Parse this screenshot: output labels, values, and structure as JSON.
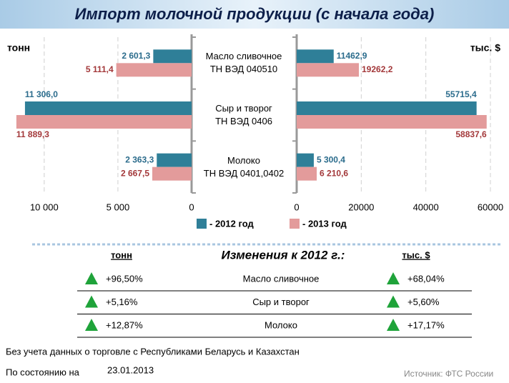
{
  "title": "Импорт молочной продукции (с начала года)",
  "chart_data": [
    {
      "type": "hbar",
      "unit_label": "тонн",
      "reversed": true,
      "categories": [
        "Масло сливочное\nТН ВЭД 040510",
        "Сыр и творог\nТН ВЭД 0406",
        "Молоко\nТН ВЭД 0401,0402"
      ],
      "series": [
        {
          "name": "- 2012 год",
          "color": "#2f7f98",
          "values": [
            2601.3,
            11306.0,
            2363.3
          ],
          "value_labels": [
            "2 601,3",
            "11 306,0",
            "2 363,3"
          ]
        },
        {
          "name": "- 2013 год",
          "color": "#e39b9b",
          "values": [
            5111.4,
            11889.3,
            2667.5
          ],
          "value_labels": [
            "5 111,4",
            "11 889,3",
            "2 667,5"
          ]
        }
      ],
      "xlim": [
        0,
        13000
      ],
      "xticks": [
        {
          "value": 10000,
          "label": "10 000"
        },
        {
          "value": 5000,
          "label": "5 000"
        },
        0
      ],
      "grid": true
    },
    {
      "type": "hbar",
      "unit_label": "тыс. $",
      "reversed": false,
      "series": [
        {
          "color": "#2f7f98",
          "values": [
            11462.9,
            55715.4,
            5300.4
          ],
          "value_labels": [
            "11462,9",
            "55715,4",
            "5 300,4"
          ]
        },
        {
          "color": "#e39b9b",
          "values": [
            19262.2,
            58837.6,
            6210.6
          ],
          "value_labels": [
            "19262,2",
            "58837,6",
            "6 210,6"
          ]
        }
      ],
      "xlim": [
        0,
        60000
      ],
      "xticks": [
        0,
        20000,
        40000,
        60000
      ],
      "grid": true
    }
  ],
  "changes": {
    "title": "Изменения к 2012 г.:",
    "left_header": "тонн",
    "right_header": "тыс. $",
    "rows": [
      [
        "+96,50%",
        "Масло сливочное",
        "+68,04%"
      ],
      [
        "+5,16%",
        "Сыр и творог",
        "+5,60%"
      ],
      [
        "+12,87%",
        "Молоко",
        "+17,17%"
      ]
    ]
  },
  "footnote": "Без учета данных о торговле с Республиками Беларусь и Казахстан",
  "as_of_label": "По состоянию на",
  "as_of_date": "23.01.2013",
  "source": "Источник: ФТС России"
}
